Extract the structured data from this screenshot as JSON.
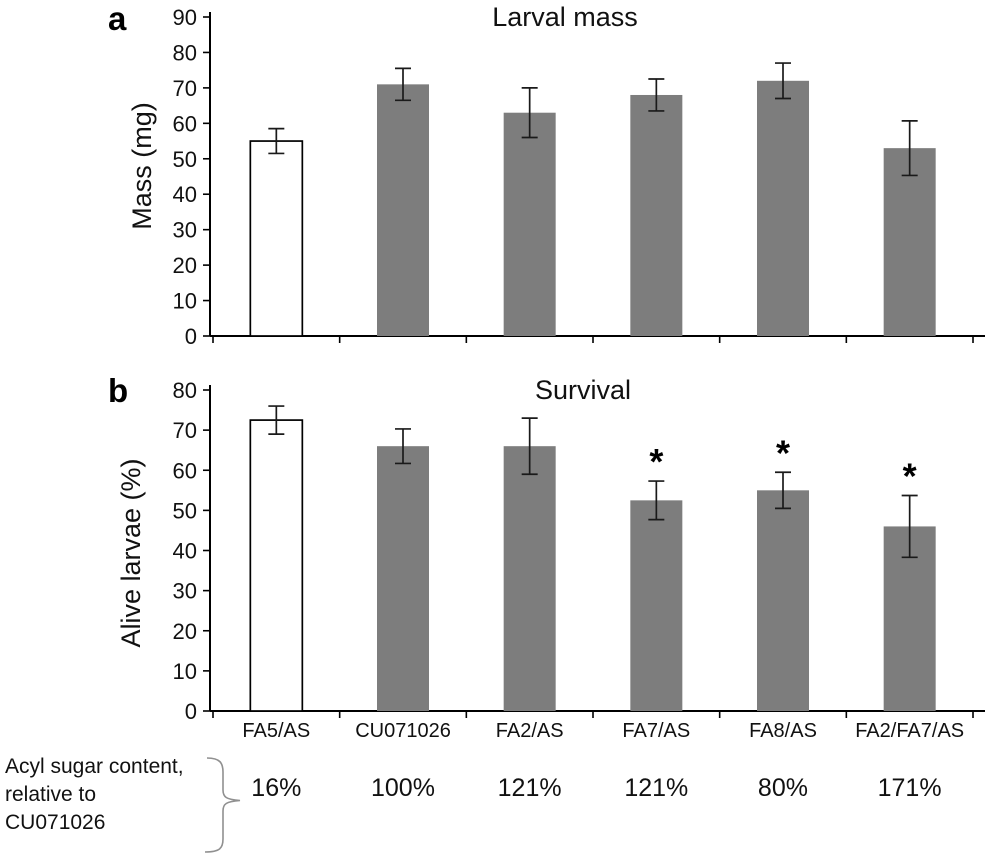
{
  "figure": {
    "panels": [
      {
        "letter": "a"
      },
      {
        "letter": "b"
      }
    ]
  },
  "chart_data": [
    {
      "type": "bar",
      "panel_letter": "a",
      "title": "Larval mass",
      "ylabel": "Mass  (mg)",
      "categories": [
        "FA5/AS",
        "CU071026",
        "FA2/AS",
        "FA7/AS",
        "FA8/AS",
        "FA2/FA7/AS"
      ],
      "values": [
        55,
        71,
        63,
        68,
        72,
        53
      ],
      "errors": [
        3.5,
        4.5,
        7,
        4.5,
        5,
        7.7
      ],
      "bar_colors": [
        "#ffffff",
        "#7d7d7d",
        "#7d7d7d",
        "#7d7d7d",
        "#7d7d7d",
        "#7d7d7d"
      ],
      "significant": [
        false,
        false,
        false,
        false,
        false,
        false
      ],
      "ylim": [
        0,
        90
      ],
      "ytick_step": 10,
      "grid": false,
      "legend": "none"
    },
    {
      "type": "bar",
      "panel_letter": "b",
      "title": "Survival",
      "ylabel": "Alive larvae  (%)",
      "categories": [
        "FA5/AS",
        "CU071026",
        "FA2/AS",
        "FA7/AS",
        "FA8/AS",
        "FA2/FA7/AS"
      ],
      "values": [
        72.5,
        66,
        66,
        52.5,
        55,
        46
      ],
      "errors": [
        3.5,
        4.3,
        7,
        4.8,
        4.5,
        7.7
      ],
      "bar_colors": [
        "#ffffff",
        "#7d7d7d",
        "#7d7d7d",
        "#7d7d7d",
        "#7d7d7d",
        "#7d7d7d"
      ],
      "significant": [
        false,
        false,
        false,
        true,
        true,
        true
      ],
      "ylim": [
        0,
        80
      ],
      "ytick_step": 10,
      "grid": false,
      "legend": "none"
    }
  ],
  "footer": {
    "annotation_lines": [
      "Acyl sugar content,",
      "relative to",
      "CU071026"
    ],
    "percentages": [
      "16%",
      "100%",
      "121%",
      "121%",
      "80%",
      "171%"
    ]
  },
  "colors": {
    "bar_gray": "#7d7d7d",
    "bar_white": "#ffffff",
    "axis_black": "#000000",
    "brace_gray": "#909090"
  }
}
